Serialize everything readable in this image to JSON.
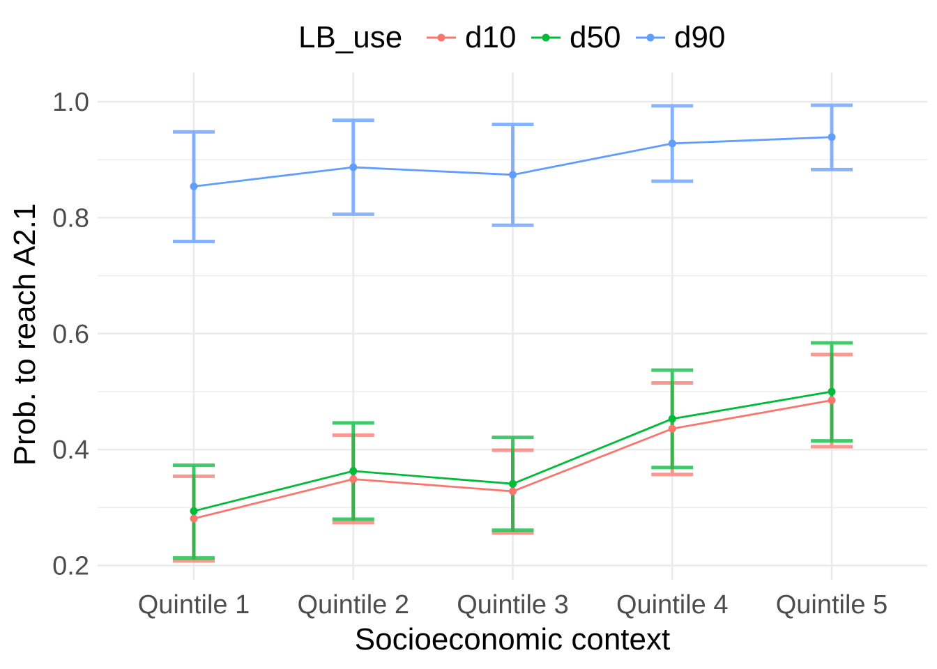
{
  "chart_data": {
    "type": "line",
    "xlabel": "Socioeconomic context",
    "ylabel": "Prob. to reach A2.1",
    "categories": [
      "Quintile 1",
      "Quintile 2",
      "Quintile 3",
      "Quintile 4",
      "Quintile 5"
    ],
    "ylim": [
      0.18,
      1.04
    ],
    "yticks": [
      0.2,
      0.4,
      0.6,
      0.8,
      1.0
    ],
    "ytick_labels": [
      "0.2",
      "0.4",
      "0.6",
      "0.8",
      "1.0"
    ],
    "grid": true,
    "legend": {
      "title": "LB_use",
      "position": "top"
    },
    "series": [
      {
        "name": "d10",
        "color": "#F8766D",
        "values": [
          0.281,
          0.349,
          0.328,
          0.436,
          0.485
        ],
        "lower": [
          0.208,
          0.274,
          0.256,
          0.357,
          0.405
        ],
        "upper": [
          0.354,
          0.425,
          0.399,
          0.515,
          0.564
        ]
      },
      {
        "name": "d50",
        "color": "#00BA38",
        "values": [
          0.294,
          0.363,
          0.341,
          0.453,
          0.5
        ],
        "lower": [
          0.213,
          0.28,
          0.261,
          0.369,
          0.415
        ],
        "upper": [
          0.373,
          0.446,
          0.421,
          0.537,
          0.584
        ]
      },
      {
        "name": "d90",
        "color": "#619CFF",
        "values": [
          0.854,
          0.887,
          0.874,
          0.928,
          0.939
        ],
        "lower": [
          0.759,
          0.806,
          0.787,
          0.863,
          0.883
        ],
        "upper": [
          0.948,
          0.968,
          0.961,
          0.993,
          0.994
        ]
      }
    ]
  }
}
